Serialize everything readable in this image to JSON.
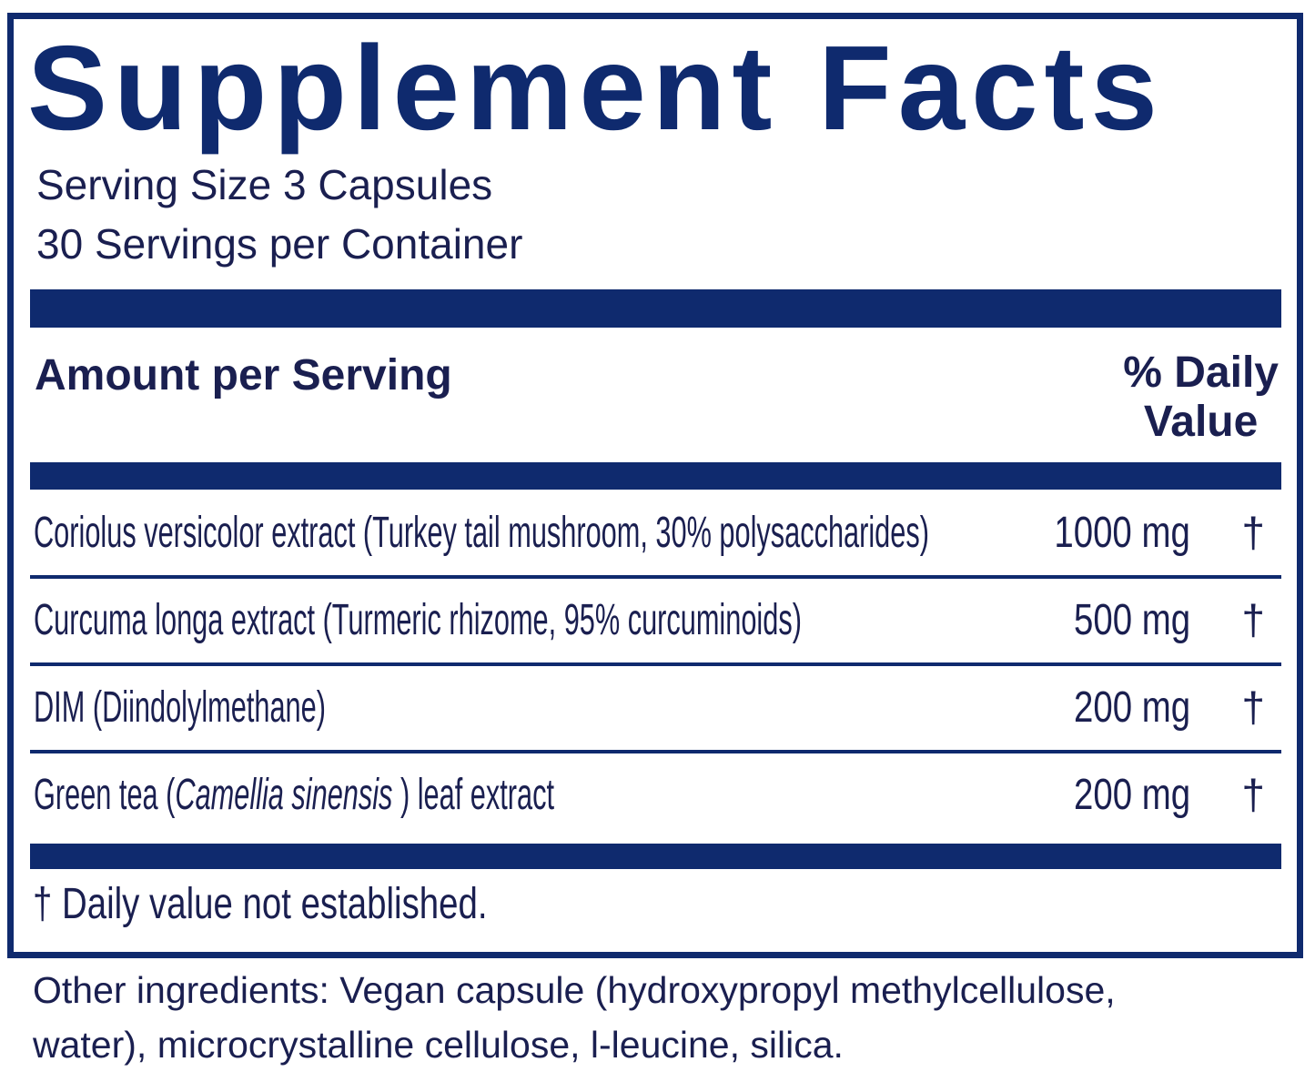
{
  "title": "Supplement Facts",
  "serving_size": "Serving Size 3 Capsules",
  "servings_per_container": "30 Servings per Container",
  "header": {
    "amount_label": "Amount per Serving",
    "dv_line1": "% Daily",
    "dv_line2": "Value"
  },
  "rows": [
    {
      "name": "Coriolus versicolor extract (Turkey tail mushroom, 30% polysaccharides)",
      "amount": "1000 mg",
      "dv": "†"
    },
    {
      "name": "Curcuma longa extract (Turmeric rhizome, 95% curcuminoids)",
      "amount": "500 mg",
      "dv": "†"
    },
    {
      "name": "DIM (Diindolylmethane)",
      "amount": "200 mg",
      "dv": "†"
    },
    {
      "name_prefix": "Green tea (",
      "name_italic": "Camellia sinensis",
      "name_suffix": " ) leaf extract",
      "amount": "200 mg",
      "dv": "†"
    }
  ],
  "footnote": "† Daily value not established.",
  "other_ingredients_line1": "Other ingredients: Vegan capsule (hydroxypropyl methylcellulose,",
  "other_ingredients_line2": "water), microcrystalline cellulose, l-leucine, silica.",
  "colors": {
    "brand_navy": "#0f2a6e",
    "text": "#1a1f50"
  }
}
